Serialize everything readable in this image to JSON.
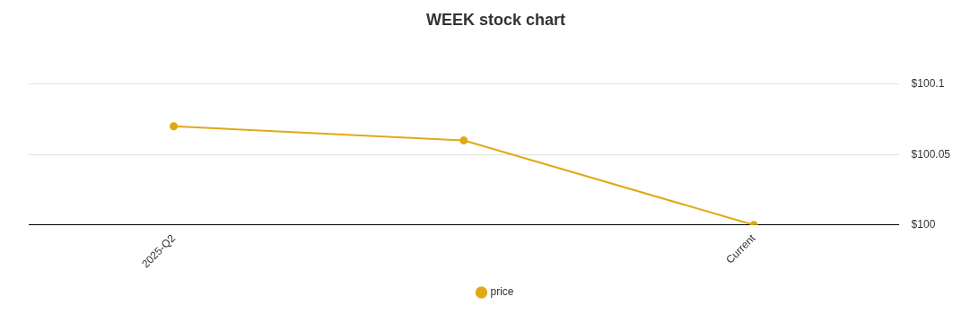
{
  "chart_data": {
    "type": "line",
    "title": "WEEK stock chart",
    "categories": [
      "2025-Q2",
      null,
      "Current"
    ],
    "series": [
      {
        "name": "price",
        "color": "#e0a914",
        "values": [
          100.07,
          100.06,
          100
        ]
      }
    ],
    "ylim": [
      100,
      100.1
    ],
    "yticks": [
      {
        "value": 100,
        "label": "$100"
      },
      {
        "value": 100.05,
        "label": "$100.05"
      },
      {
        "value": 100.1,
        "label": "$100.1"
      }
    ],
    "grid": "y",
    "legend": "bottom",
    "marker": "circle",
    "line_style": "solid"
  }
}
